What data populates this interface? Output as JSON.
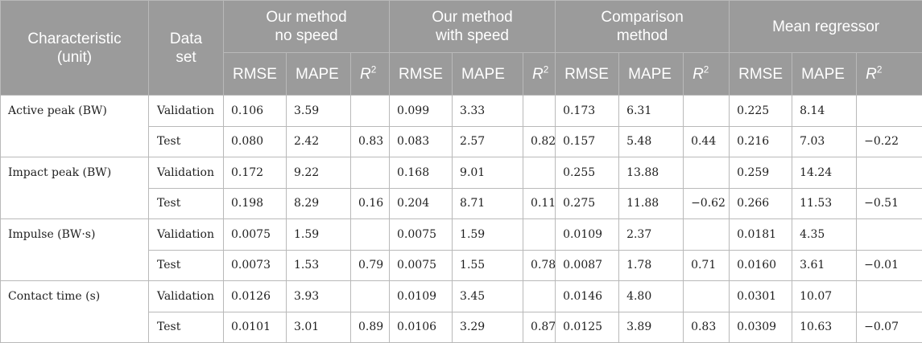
{
  "header": {
    "characteristic": [
      "Characteristic",
      "(unit)"
    ],
    "dataset": [
      "Data",
      "set"
    ],
    "groups": [
      [
        "Our method",
        "no speed"
      ],
      [
        "Our method",
        "with speed"
      ],
      [
        "Comparison",
        "method"
      ],
      [
        "Mean regressor"
      ]
    ],
    "metrics": {
      "rmse": "RMSE",
      "mape": "MAPE",
      "r": "R",
      "r_sup": "2"
    }
  },
  "rows": [
    {
      "characteristic": "Active peak (BW)",
      "validation": {
        "label": "Validation",
        "values": [
          "0.106",
          "3.59",
          "",
          "0.099",
          "3.33",
          "",
          "0.173",
          "6.31",
          "",
          "0.225",
          "8.14",
          ""
        ]
      },
      "test": {
        "label": "Test",
        "values": [
          "0.080",
          "2.42",
          "0.83",
          "0.083",
          "2.57",
          "0.82",
          "0.157",
          "5.48",
          "0.44",
          "0.216",
          "7.03",
          "−0.22"
        ]
      }
    },
    {
      "characteristic": "Impact peak (BW)",
      "validation": {
        "label": "Validation",
        "values": [
          "0.172",
          "9.22",
          "",
          "0.168",
          "9.01",
          "",
          "0.255",
          "13.88",
          "",
          "0.259",
          "14.24",
          ""
        ]
      },
      "test": {
        "label": "Test",
        "values": [
          "0.198",
          "8.29",
          "0.16",
          "0.204",
          "8.71",
          "0.11",
          "0.275",
          "11.88",
          "−0.62",
          "0.266",
          "11.53",
          "−0.51"
        ]
      }
    },
    {
      "characteristic": "Impulse (BW·s)",
      "validation": {
        "label": "Validation",
        "values": [
          "0.0075",
          "1.59",
          "",
          "0.0075",
          "1.59",
          "",
          "0.0109",
          "2.37",
          "",
          "0.0181",
          "4.35",
          ""
        ]
      },
      "test": {
        "label": "Test",
        "values": [
          "0.0073",
          "1.53",
          "0.79",
          "0.0075",
          "1.55",
          "0.78",
          "0.0087",
          "1.78",
          "0.71",
          "0.0160",
          "3.61",
          "−0.01"
        ]
      }
    },
    {
      "characteristic": "Contact time (s)",
      "validation": {
        "label": "Validation",
        "values": [
          "0.0126",
          "3.93",
          "",
          "0.0109",
          "3.45",
          "",
          "0.0146",
          "4.80",
          "",
          "0.0301",
          "10.07",
          ""
        ]
      },
      "test": {
        "label": "Test",
        "values": [
          "0.0101",
          "3.01",
          "0.89",
          "0.0106",
          "3.29",
          "0.87",
          "0.0125",
          "3.89",
          "0.83",
          "0.0309",
          "10.63",
          "−0.07"
        ]
      }
    }
  ]
}
